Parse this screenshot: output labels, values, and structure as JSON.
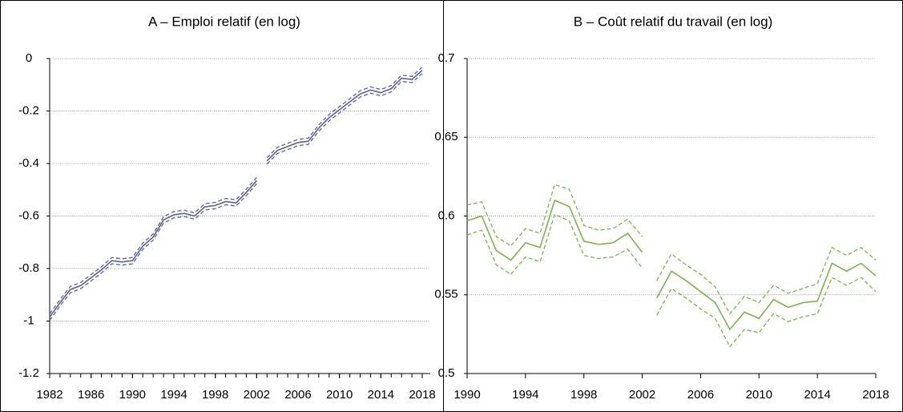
{
  "chart_data": [
    {
      "type": "line",
      "title": "A – Emploi relatif (en log)",
      "x": [
        1982,
        1983,
        1984,
        1985,
        1986,
        1987,
        1988,
        1989,
        1990,
        1991,
        1992,
        1993,
        1994,
        1995,
        1996,
        1997,
        1998,
        1999,
        2000,
        2001,
        2002,
        2003,
        2004,
        2005,
        2006,
        2007,
        2008,
        2009,
        2010,
        2011,
        2012,
        2013,
        2014,
        2015,
        2016,
        2017,
        2018
      ],
      "xlim": [
        1982,
        2018
      ],
      "xticks": [
        1982,
        1986,
        1990,
        1994,
        1998,
        2002,
        2006,
        2010,
        2014,
        2018
      ],
      "ylim": [
        -1.2,
        0
      ],
      "yticks": [
        -1.2,
        -1,
        -0.8,
        -0.6,
        -0.4,
        -0.2,
        0
      ],
      "grid": true,
      "series": [
        {
          "color": "#5b5ea6",
          "dashed": false,
          "values": [
            -0.985,
            -0.93,
            -0.88,
            -0.865,
            -0.835,
            -0.805,
            -0.77,
            -0.775,
            -0.77,
            -0.715,
            -0.68,
            -0.615,
            -0.595,
            -0.59,
            -0.6,
            -0.565,
            -0.56,
            -0.545,
            -0.55,
            -0.51,
            -0.465,
            null,
            null,
            null,
            null,
            null,
            null,
            null,
            null,
            null,
            null,
            null,
            null,
            null,
            null,
            null,
            null
          ]
        },
        {
          "color": "#5b5ea6",
          "dashed": true,
          "values": [
            -0.973,
            -0.918,
            -0.868,
            -0.853,
            -0.823,
            -0.793,
            -0.758,
            -0.763,
            -0.758,
            -0.703,
            -0.668,
            -0.603,
            -0.583,
            -0.578,
            -0.588,
            -0.553,
            -0.548,
            -0.533,
            -0.538,
            -0.498,
            -0.453,
            null,
            null,
            null,
            null,
            null,
            null,
            null,
            null,
            null,
            null,
            null,
            null,
            null,
            null,
            null,
            null
          ]
        },
        {
          "color": "#5b5ea6",
          "dashed": true,
          "values": [
            -0.997,
            -0.942,
            -0.892,
            -0.877,
            -0.847,
            -0.817,
            -0.782,
            -0.787,
            -0.782,
            -0.727,
            -0.692,
            -0.627,
            -0.607,
            -0.602,
            -0.612,
            -0.577,
            -0.572,
            -0.557,
            -0.562,
            -0.522,
            -0.477,
            null,
            null,
            null,
            null,
            null,
            null,
            null,
            null,
            null,
            null,
            null,
            null,
            null,
            null,
            null,
            null
          ]
        },
        {
          "color": "#5b5ea6",
          "dashed": false,
          "values": [
            null,
            null,
            null,
            null,
            null,
            null,
            null,
            null,
            null,
            null,
            null,
            null,
            null,
            null,
            null,
            null,
            null,
            null,
            null,
            null,
            null,
            -0.39,
            -0.35,
            -0.335,
            -0.32,
            -0.315,
            -0.265,
            -0.225,
            -0.195,
            -0.165,
            -0.135,
            -0.12,
            -0.13,
            -0.115,
            -0.075,
            -0.08,
            -0.045
          ]
        },
        {
          "color": "#5b5ea6",
          "dashed": true,
          "values": [
            null,
            null,
            null,
            null,
            null,
            null,
            null,
            null,
            null,
            null,
            null,
            null,
            null,
            null,
            null,
            null,
            null,
            null,
            null,
            null,
            null,
            -0.378,
            -0.338,
            -0.323,
            -0.308,
            -0.303,
            -0.253,
            -0.213,
            -0.183,
            -0.153,
            -0.123,
            -0.108,
            -0.118,
            -0.103,
            -0.063,
            -0.068,
            -0.033
          ]
        },
        {
          "color": "#5b5ea6",
          "dashed": true,
          "values": [
            null,
            null,
            null,
            null,
            null,
            null,
            null,
            null,
            null,
            null,
            null,
            null,
            null,
            null,
            null,
            null,
            null,
            null,
            null,
            null,
            null,
            -0.402,
            -0.362,
            -0.347,
            -0.332,
            -0.327,
            -0.277,
            -0.237,
            -0.207,
            -0.177,
            -0.147,
            -0.132,
            -0.142,
            -0.127,
            -0.087,
            -0.092,
            -0.057
          ]
        }
      ]
    },
    {
      "type": "line",
      "title": "B – Coût relatif du travail (en log)",
      "x": [
        1990,
        1991,
        1992,
        1993,
        1994,
        1995,
        1996,
        1997,
        1998,
        1999,
        2000,
        2001,
        2002,
        2003,
        2004,
        2005,
        2006,
        2007,
        2008,
        2009,
        2010,
        2011,
        2012,
        2013,
        2014,
        2015,
        2016,
        2017,
        2018
      ],
      "xlim": [
        1990,
        2018
      ],
      "xticks": [
        1990,
        1994,
        1998,
        2002,
        2006,
        2010,
        2014,
        2018
      ],
      "ylim": [
        0.5,
        0.7
      ],
      "yticks": [
        0.5,
        0.55,
        0.6,
        0.65,
        0.7
      ],
      "grid": true,
      "series": [
        {
          "color": "#7ab648",
          "dashed": false,
          "values": [
            0.597,
            0.6,
            0.578,
            0.572,
            0.583,
            0.58,
            0.61,
            0.606,
            0.584,
            0.582,
            0.583,
            0.589,
            0.577,
            null,
            null,
            null,
            null,
            null,
            null,
            null,
            null,
            null,
            null,
            null,
            null,
            null,
            null,
            null,
            null
          ]
        },
        {
          "color": "#7ab648",
          "dashed": true,
          "values": [
            0.607,
            0.609,
            0.587,
            0.581,
            0.592,
            0.589,
            0.62,
            0.617,
            0.594,
            0.591,
            0.592,
            0.598,
            0.587,
            null,
            null,
            null,
            null,
            null,
            null,
            null,
            null,
            null,
            null,
            null,
            null,
            null,
            null,
            null,
            null
          ]
        },
        {
          "color": "#7ab648",
          "dashed": true,
          "values": [
            0.588,
            0.591,
            0.569,
            0.563,
            0.574,
            0.571,
            0.601,
            0.597,
            0.575,
            0.573,
            0.574,
            0.579,
            0.567,
            null,
            null,
            null,
            null,
            null,
            null,
            null,
            null,
            null,
            null,
            null,
            null,
            null,
            null,
            null,
            null
          ]
        },
        {
          "color": "#7ab648",
          "dashed": false,
          "values": [
            null,
            null,
            null,
            null,
            null,
            null,
            null,
            null,
            null,
            null,
            null,
            null,
            null,
            0.548,
            0.565,
            0.559,
            0.552,
            0.545,
            0.528,
            0.539,
            0.535,
            0.547,
            0.542,
            0.545,
            0.546,
            0.57,
            0.565,
            0.57,
            0.562
          ]
        },
        {
          "color": "#7ab648",
          "dashed": true,
          "values": [
            null,
            null,
            null,
            null,
            null,
            null,
            null,
            null,
            null,
            null,
            null,
            null,
            null,
            0.559,
            0.576,
            0.569,
            0.563,
            0.555,
            0.538,
            0.549,
            0.545,
            0.556,
            0.551,
            0.554,
            0.557,
            0.58,
            0.575,
            0.58,
            0.572
          ]
        },
        {
          "color": "#7ab648",
          "dashed": true,
          "values": [
            null,
            null,
            null,
            null,
            null,
            null,
            null,
            null,
            null,
            null,
            null,
            null,
            null,
            0.537,
            0.554,
            0.548,
            0.541,
            0.535,
            0.517,
            0.528,
            0.526,
            0.538,
            0.533,
            0.536,
            0.538,
            0.561,
            0.556,
            0.561,
            0.552
          ]
        }
      ]
    }
  ]
}
